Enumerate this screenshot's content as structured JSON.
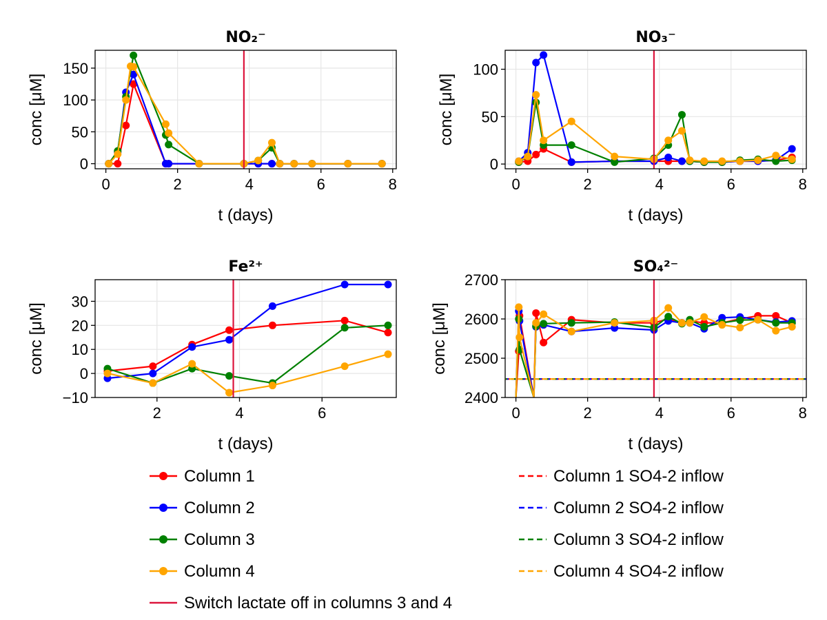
{
  "chart_data": [
    {
      "type": "line",
      "title": "NO₂⁻",
      "xlabel": "t (days)",
      "ylabel": "conc [μM]",
      "xlim": [
        -0.3,
        8.1
      ],
      "ylim": [
        -8,
        178
      ],
      "xticks": [
        0,
        2,
        4,
        6,
        8
      ],
      "yticks": [
        0,
        50,
        100,
        150
      ],
      "grid": true,
      "vline": 3.85,
      "series": [
        {
          "name": "Column 1",
          "color": "#ff0000",
          "x": [
            0.08,
            0.33,
            0.56,
            0.77,
            1.67,
            1.75,
            2.6,
            3.85,
            4.25,
            4.63,
            4.85,
            5.25,
            5.75,
            6.75,
            7.7
          ],
          "y": [
            0,
            0,
            60,
            125,
            0,
            0,
            0,
            0,
            0,
            0,
            0,
            0,
            0,
            0,
            0
          ]
        },
        {
          "name": "Column 2",
          "color": "#0000ff",
          "x": [
            0.08,
            0.33,
            0.56,
            0.77,
            1.67,
            1.75,
            2.6,
            3.85,
            4.25,
            4.63,
            4.85,
            5.25,
            5.75,
            6.75,
            7.7
          ],
          "y": [
            0,
            18,
            112,
            140,
            0,
            0,
            0,
            0,
            0,
            0,
            0,
            0,
            0,
            0,
            0
          ]
        },
        {
          "name": "Column 3",
          "color": "#008000",
          "x": [
            0.08,
            0.33,
            0.56,
            0.77,
            1.67,
            1.75,
            2.6,
            3.85,
            4.25,
            4.63,
            4.85,
            5.25,
            5.75,
            6.75,
            7.7
          ],
          "y": [
            0,
            20,
            105,
            170,
            45,
            30,
            0,
            0,
            5,
            25,
            0,
            0,
            0,
            0,
            0
          ]
        },
        {
          "name": "Column 4",
          "color": "#ffa500",
          "x": [
            0.08,
            0.33,
            0.56,
            0.69,
            0.77,
            1.67,
            1.75,
            2.6,
            3.85,
            4.25,
            4.63,
            4.85,
            5.25,
            5.75,
            6.75,
            7.7
          ],
          "y": [
            0,
            15,
            100,
            153,
            152,
            62,
            48,
            0,
            0,
            5,
            33,
            0,
            0,
            0,
            0,
            0
          ]
        }
      ]
    },
    {
      "type": "line",
      "title": "NO₃⁻",
      "xlabel": "t (days)",
      "ylabel": "conc [μM]",
      "xlim": [
        -0.3,
        8.1
      ],
      "ylim": [
        -5,
        120
      ],
      "xticks": [
        0,
        2,
        4,
        6,
        8
      ],
      "yticks": [
        0,
        50,
        100
      ],
      "grid": true,
      "vline": 3.85,
      "series": [
        {
          "name": "Column 1",
          "color": "#ff0000",
          "x": [
            0.08,
            0.33,
            0.56,
            0.77,
            1.55,
            2.75,
            3.85,
            4.25,
            4.63,
            4.85,
            5.25,
            5.75,
            6.25,
            6.75,
            7.25,
            7.7
          ],
          "y": [
            2,
            3,
            10,
            16,
            2,
            3,
            3,
            3,
            3,
            3,
            2,
            2,
            3,
            3,
            4,
            7
          ]
        },
        {
          "name": "Column 2",
          "color": "#0000ff",
          "x": [
            0.08,
            0.33,
            0.56,
            0.77,
            1.55,
            2.75,
            3.85,
            4.25,
            4.63,
            4.85,
            5.25,
            5.75,
            6.25,
            6.75,
            7.25,
            7.7
          ],
          "y": [
            3,
            12,
            107,
            115,
            2,
            3,
            3,
            7,
            3,
            3,
            2,
            2,
            3,
            3,
            4,
            16
          ]
        },
        {
          "name": "Column 3",
          "color": "#008000",
          "x": [
            0.08,
            0.33,
            0.56,
            0.77,
            1.55,
            2.75,
            3.85,
            4.25,
            4.63,
            4.85,
            5.25,
            5.75,
            6.25,
            6.75,
            7.25,
            7.7
          ],
          "y": [
            2,
            8,
            65,
            20,
            20,
            2,
            6,
            20,
            52,
            3,
            2,
            2,
            4,
            5,
            3,
            4
          ]
        },
        {
          "name": "Column 4",
          "color": "#ffa500",
          "x": [
            0.08,
            0.33,
            0.56,
            0.77,
            1.55,
            2.75,
            3.85,
            4.25,
            4.63,
            4.85,
            5.25,
            5.75,
            6.25,
            6.75,
            7.25,
            7.7
          ],
          "y": [
            3,
            8,
            73,
            25,
            45,
            8,
            5,
            25,
            35,
            4,
            3,
            3,
            3,
            4,
            9,
            5
          ]
        }
      ]
    },
    {
      "type": "line",
      "title": "Fe²⁺",
      "xlabel": "t (days)",
      "ylabel": "conc [μM]",
      "xlim": [
        0.5,
        7.8
      ],
      "ylim": [
        -10,
        39
      ],
      "xticks": [
        2,
        4,
        6
      ],
      "yticks": [
        -10,
        0,
        10,
        20,
        30
      ],
      "grid": true,
      "vline": 3.85,
      "series": [
        {
          "name": "Column 1",
          "color": "#ff0000",
          "x": [
            0.8,
            1.9,
            2.85,
            3.75,
            4.8,
            6.55,
            7.6
          ],
          "y": [
            1,
            3,
            12,
            18,
            20,
            22,
            17
          ]
        },
        {
          "name": "Column 2",
          "color": "#0000ff",
          "x": [
            0.8,
            1.9,
            2.85,
            3.75,
            4.8,
            6.55,
            7.6
          ],
          "y": [
            -2,
            0,
            11,
            14,
            28,
            37,
            37
          ]
        },
        {
          "name": "Column 3",
          "color": "#008000",
          "x": [
            0.8,
            1.9,
            2.85,
            3.75,
            4.8,
            6.55,
            7.6
          ],
          "y": [
            2,
            -4,
            2,
            -1,
            -4,
            19,
            20
          ]
        },
        {
          "name": "Column 4",
          "color": "#ffa500",
          "x": [
            0.8,
            1.9,
            2.85,
            3.75,
            4.8,
            6.55,
            7.6
          ],
          "y": [
            0,
            -4,
            4,
            -8,
            -5,
            3,
            8
          ]
        }
      ]
    },
    {
      "type": "line",
      "title": "SO₄²⁻",
      "xlabel": "t (days)",
      "ylabel": "conc [μM]",
      "xlim": [
        -0.3,
        8.1
      ],
      "ylim": [
        2400,
        2700
      ],
      "xticks": [
        0,
        2,
        4,
        6,
        8
      ],
      "yticks": [
        2400,
        2500,
        2600,
        2700
      ],
      "grid": true,
      "vline": 3.85,
      "inflow_level": 2447,
      "series": [
        {
          "name": "Column 1",
          "color": "#ff0000",
          "x": [
            0.0,
            0.08,
            0.1,
            0.5,
            0.56,
            0.77,
            1.55,
            2.75,
            3.85,
            4.25,
            4.63,
            4.85,
            5.25,
            5.75,
            6.25,
            6.75,
            7.25,
            7.7
          ],
          "y": [
            2400,
            2518,
            2608,
            2400,
            2615,
            2540,
            2598,
            2590,
            2590,
            2600,
            2590,
            2595,
            2590,
            2590,
            2600,
            2608,
            2608,
            2590
          ]
        },
        {
          "name": "Column 2",
          "color": "#0000ff",
          "x": [
            0.0,
            0.08,
            0.1,
            0.5,
            0.56,
            0.77,
            1.55,
            2.75,
            3.85,
            4.25,
            4.63,
            4.85,
            5.25,
            5.75,
            6.25,
            6.75,
            7.25,
            7.7
          ],
          "y": [
            2400,
            2620,
            2595,
            2400,
            2580,
            2585,
            2568,
            2577,
            2572,
            2595,
            2590,
            2590,
            2575,
            2603,
            2605,
            2598,
            2592,
            2595
          ]
        },
        {
          "name": "Column 3",
          "color": "#008000",
          "x": [
            0.0,
            0.08,
            0.1,
            0.5,
            0.56,
            0.77,
            1.55,
            2.75,
            3.85,
            4.25,
            4.63,
            4.85,
            5.25,
            5.75,
            6.25,
            6.75,
            7.25,
            7.7
          ],
          "y": [
            2400,
            2600,
            2522,
            2400,
            2582,
            2588,
            2590,
            2592,
            2578,
            2606,
            2588,
            2598,
            2580,
            2590,
            2597,
            2598,
            2590,
            2590
          ]
        },
        {
          "name": "Column 4",
          "color": "#ffa500",
          "x": [
            0.0,
            0.08,
            0.1,
            0.5,
            0.56,
            0.77,
            1.55,
            2.75,
            3.85,
            4.25,
            4.63,
            4.85,
            5.25,
            5.75,
            6.25,
            6.75,
            7.25,
            7.7
          ],
          "y": [
            2400,
            2630,
            2553,
            2400,
            2590,
            2612,
            2568,
            2590,
            2596,
            2628,
            2590,
            2590,
            2605,
            2585,
            2578,
            2598,
            2570,
            2580
          ]
        }
      ]
    }
  ],
  "legend": {
    "placement": "bottom",
    "left": [
      {
        "label": "Column 1",
        "color": "#ff0000",
        "style": "line-marker"
      },
      {
        "label": "Column 2",
        "color": "#0000ff",
        "style": "line-marker"
      },
      {
        "label": "Column 3",
        "color": "#008000",
        "style": "line-marker"
      },
      {
        "label": "Column 4",
        "color": "#ffa500",
        "style": "line-marker"
      },
      {
        "label": "Switch lactate off in columns 3 and 4",
        "color": "#dc143c",
        "style": "line"
      }
    ],
    "right": [
      {
        "label": "Column 1 SO4-2 inflow",
        "color": "#ff0000",
        "style": "dashed"
      },
      {
        "label": "Column 2 SO4-2 inflow",
        "color": "#0000ff",
        "style": "dashed"
      },
      {
        "label": "Column 3 SO4-2 inflow",
        "color": "#008000",
        "style": "dashed"
      },
      {
        "label": "Column 4 SO4-2 inflow",
        "color": "#ffa500",
        "style": "dashed"
      }
    ]
  },
  "colors": {
    "vline": "#dc143c",
    "grid": "#e6e6e6",
    "axis": "#000000"
  }
}
